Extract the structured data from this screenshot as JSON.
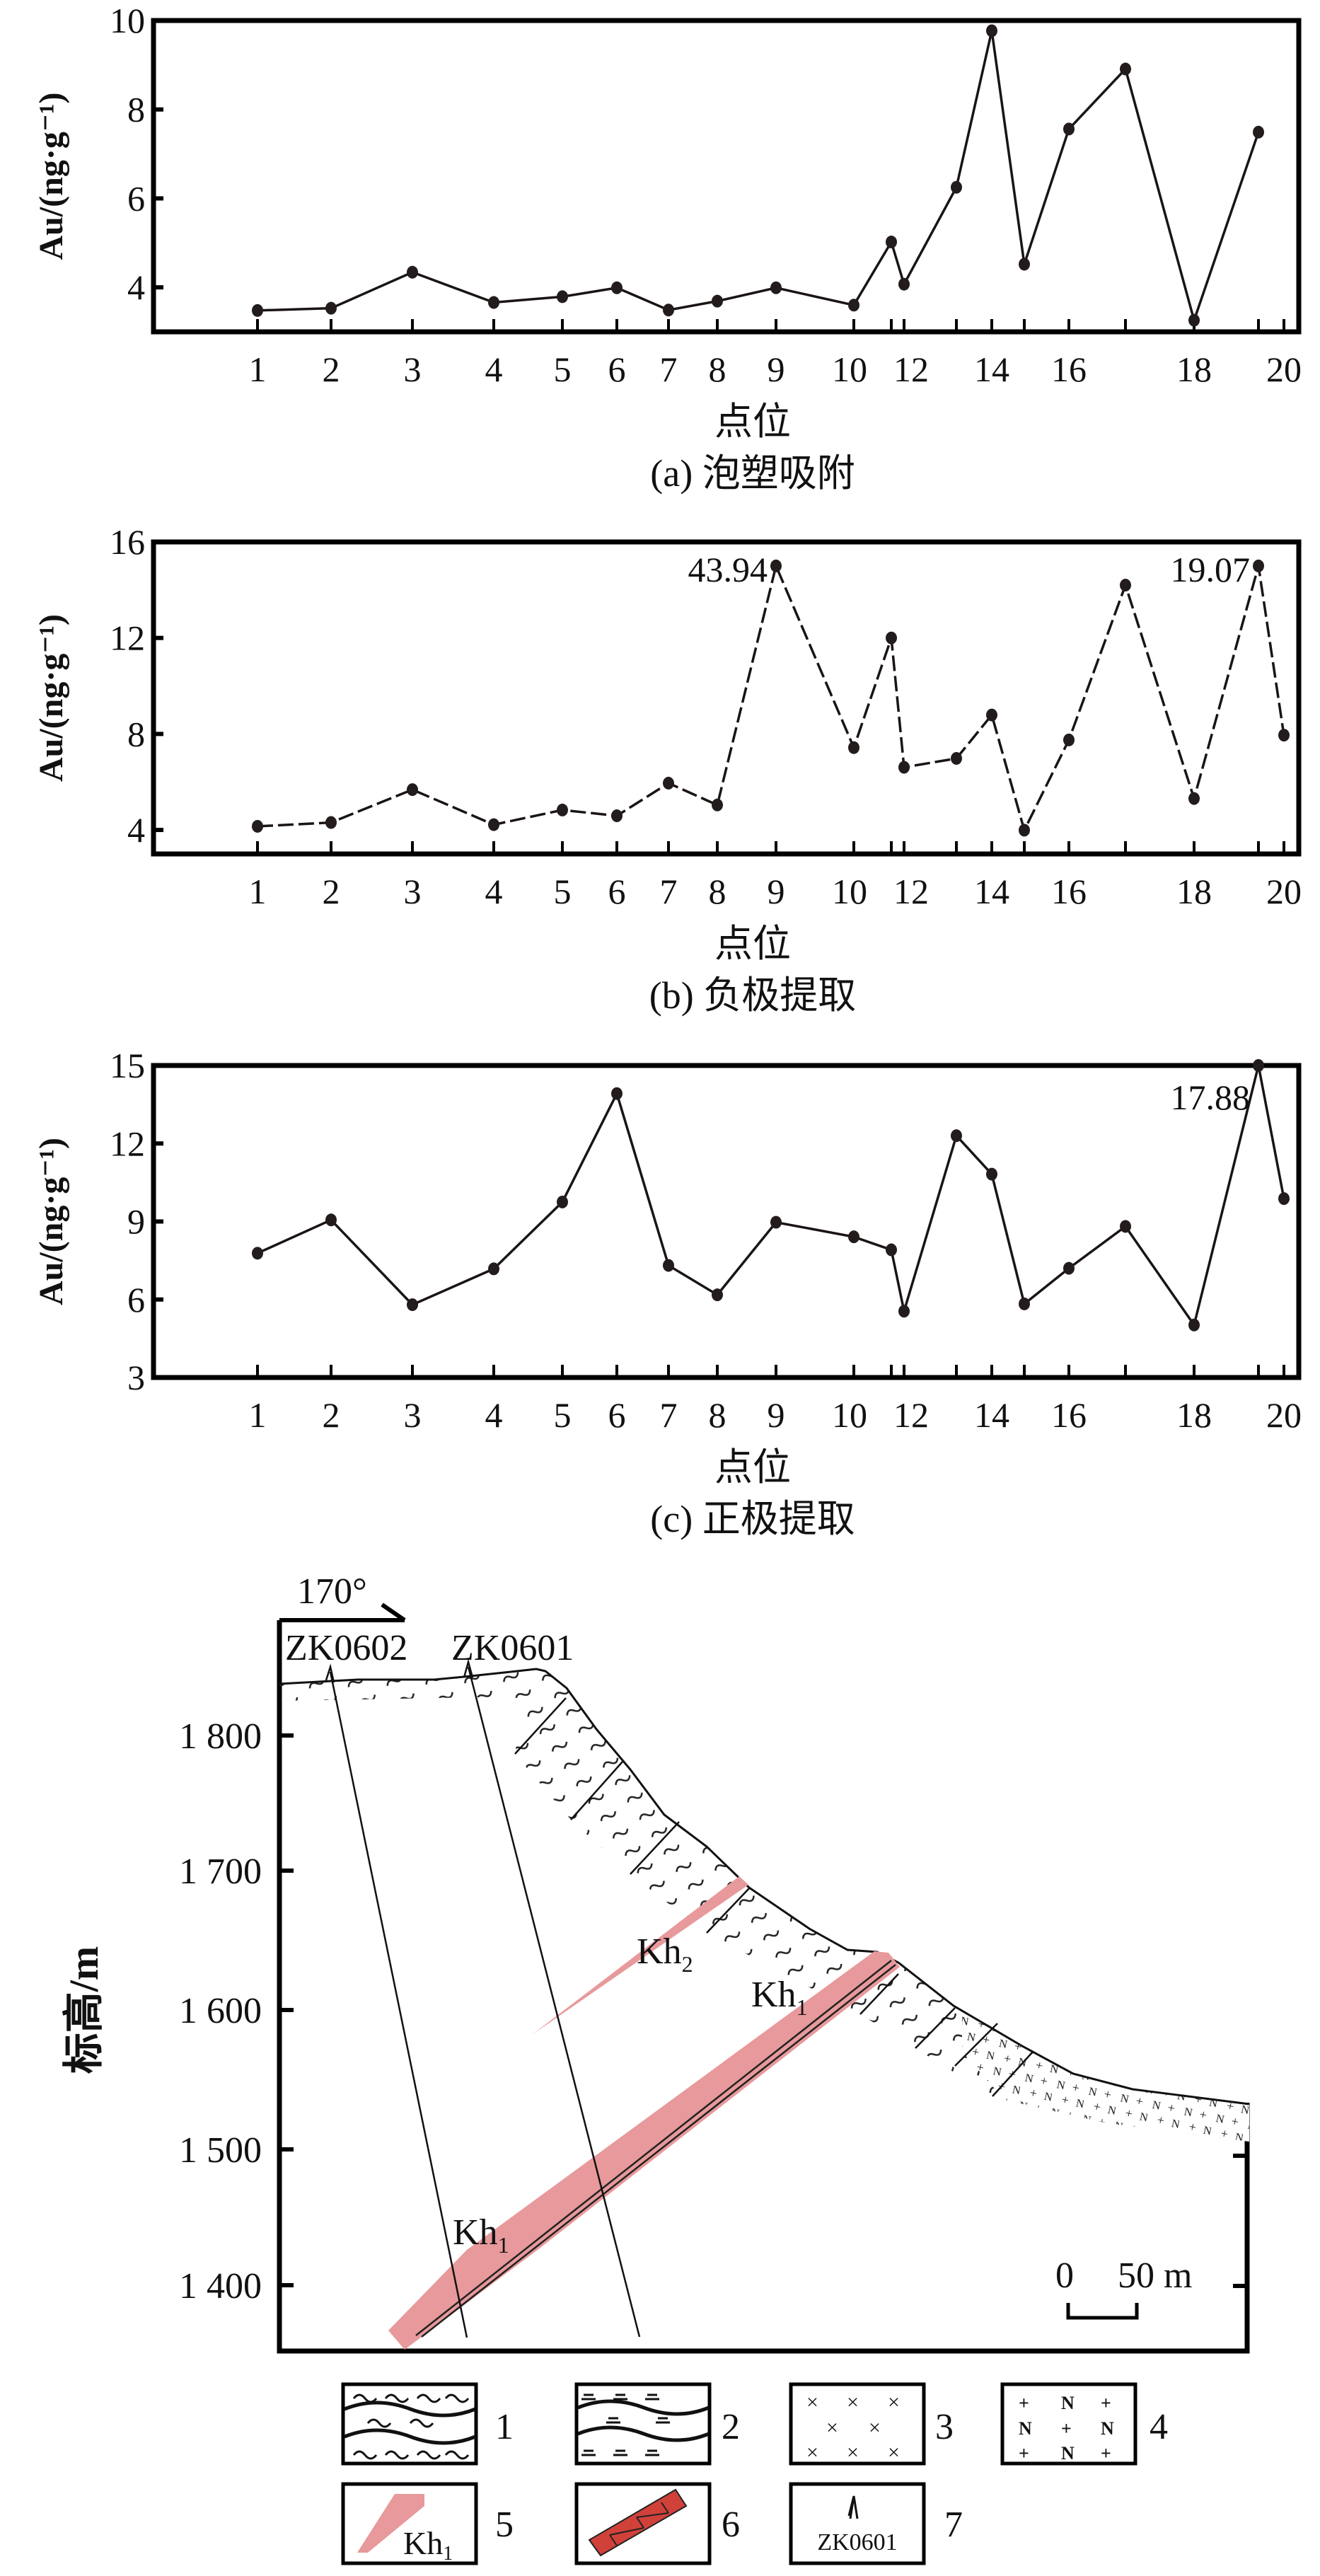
{
  "chart_data": [
    {
      "type": "line",
      "panel": "a",
      "title": "(a) 泡塑吸附",
      "xlabel": "点位",
      "ylabel": "Au/(ng·g⁻¹)",
      "x_tick_labels": [
        "1",
        "2",
        "3",
        "4",
        "5",
        "6",
        "7",
        "8",
        "9",
        "10",
        "12",
        "14",
        "16",
        "18",
        "20"
      ],
      "x": [
        1,
        2,
        3,
        4,
        5,
        6,
        7,
        8,
        9,
        10,
        11,
        12,
        13,
        14,
        15,
        16,
        17,
        18,
        19
      ],
      "y": [
        3.48,
        3.53,
        4.34,
        3.66,
        3.79,
        3.99,
        3.49,
        3.69,
        3.99,
        3.6,
        5.02,
        4.07,
        6.25,
        9.77,
        4.52,
        7.56,
        8.91,
        3.26,
        7.49
      ],
      "ylim": [
        3,
        10
      ],
      "yticks": [
        4,
        6,
        8,
        10
      ],
      "line_style": "solid",
      "annotations": []
    },
    {
      "type": "line",
      "panel": "b",
      "title": "(b) 负极提取",
      "xlabel": "点位",
      "ylabel": "Au/(ng·g⁻¹)",
      "x_tick_labels": [
        "1",
        "2",
        "3",
        "4",
        "5",
        "6",
        "7",
        "8",
        "9",
        "10",
        "12",
        "14",
        "16",
        "18",
        "20"
      ],
      "x": [
        1,
        2,
        3,
        4,
        5,
        6,
        7,
        8,
        9,
        10,
        11,
        12,
        13,
        14,
        15,
        16,
        17,
        18,
        19,
        20
      ],
      "y": [
        4.15,
        4.31,
        5.68,
        4.22,
        4.83,
        4.59,
        5.95,
        5.04,
        15.0,
        7.43,
        12.0,
        6.61,
        6.98,
        8.79,
        3.99,
        7.75,
        14.2,
        5.31,
        15.0,
        7.95
      ],
      "ylim": [
        3,
        16
      ],
      "yticks": [
        4,
        8,
        12,
        16
      ],
      "line_style": "dashed",
      "annotations": [
        {
          "x": 9,
          "text": "43.94"
        },
        {
          "x": 19,
          "text": "19.07"
        }
      ]
    },
    {
      "type": "line",
      "panel": "c",
      "title": "(c) 正极提取",
      "xlabel": "点位",
      "ylabel": "Au/(ng·g⁻¹)",
      "x_tick_labels": [
        "1",
        "2",
        "3",
        "4",
        "5",
        "6",
        "7",
        "8",
        "9",
        "10",
        "12",
        "14",
        "16",
        "18",
        "20"
      ],
      "x": [
        1,
        2,
        3,
        4,
        5,
        6,
        7,
        8,
        9,
        10,
        11,
        12,
        13,
        14,
        15,
        16,
        17,
        18,
        19,
        20
      ],
      "y": [
        7.78,
        9.06,
        5.8,
        7.18,
        9.75,
        13.92,
        7.31,
        6.18,
        8.97,
        8.41,
        7.91,
        5.55,
        12.3,
        10.82,
        5.83,
        7.2,
        8.81,
        5.02,
        15.0,
        9.88
      ],
      "ylim": [
        3,
        15
      ],
      "yticks": [
        3,
        6,
        9,
        12,
        15
      ],
      "line_style": "solid",
      "annotations": [
        {
          "x": 19,
          "text": "17.88"
        }
      ]
    }
  ],
  "section": {
    "azimuth": "170°",
    "drillholes": [
      "ZK0602",
      "ZK0601"
    ],
    "ylabel": "标高/m",
    "elevation_ticks": [
      "1 800",
      "1 700",
      "1 600",
      "1 500",
      "1 400"
    ],
    "orebodies": [
      {
        "main": "Kh",
        "sub": "2"
      },
      {
        "main": "Kh",
        "sub": "1"
      },
      {
        "main": "Kh",
        "sub": "1"
      }
    ],
    "scale": {
      "zero": "0",
      "label": "50 m"
    },
    "colors": {
      "orebody": "#e8999b",
      "fault": "#d0413a"
    },
    "legend": [
      {
        "number": "1"
      },
      {
        "number": "2"
      },
      {
        "number": "3"
      },
      {
        "number": "4"
      },
      {
        "number": "5",
        "symbol_main": "Kh",
        "symbol_sub": "1"
      },
      {
        "number": "6"
      },
      {
        "number": "7",
        "symbol_text": "ZK0601"
      }
    ]
  }
}
